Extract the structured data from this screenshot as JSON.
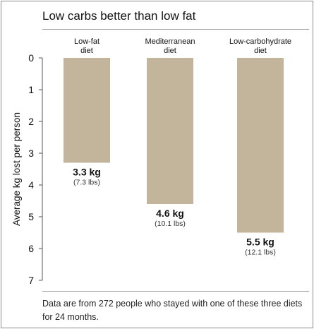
{
  "title": "Low carbs better than low fat",
  "footnote": "Data are from 272 people who stayed with one of these three diets for 24 months.",
  "chart_data": {
    "type": "bar",
    "ylabel": "Average kg lost per person",
    "ylim": [
      0,
      7
    ],
    "y_inverted": true,
    "y_ticks": [
      "0",
      "1",
      "2",
      "3",
      "4",
      "5",
      "6",
      "7"
    ],
    "bar_color": "#c3b59c",
    "categories": [
      [
        "Low-fat",
        "diet"
      ],
      [
        "Mediterranean",
        "diet"
      ],
      [
        "Low-carbohydrate",
        "diet"
      ]
    ],
    "values": [
      3.3,
      4.6,
      5.5
    ],
    "value_labels": [
      "3.3 kg",
      "4.6 kg",
      "5.5 kg"
    ],
    "secondary_labels": [
      "(7.3 lbs)",
      "(10.1 lbs)",
      "(12.1 lbs)"
    ]
  }
}
